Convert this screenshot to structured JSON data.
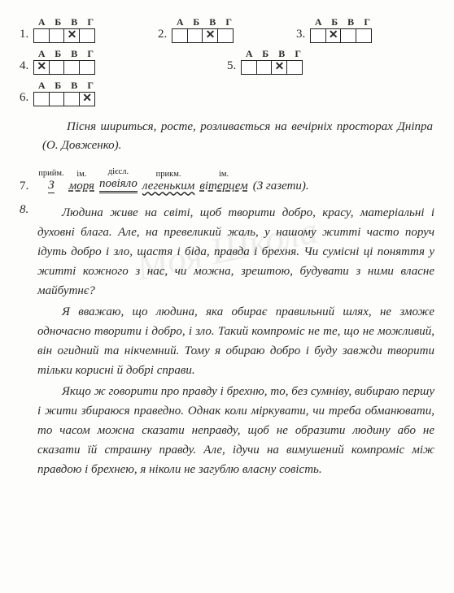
{
  "watermark": "Моя Школа",
  "options": [
    "А",
    "Б",
    "В",
    "Г"
  ],
  "questions": [
    {
      "num": "1.",
      "marked": 2
    },
    {
      "num": "2.",
      "marked": 2
    },
    {
      "num": "3.",
      "marked": 1
    },
    {
      "num": "4.",
      "marked": 0
    },
    {
      "num": "5.",
      "marked": 2
    },
    {
      "num": "6.",
      "marked": 3
    }
  ],
  "sentence": "Пісня шириться, росте, розливається на вечірніх просторах Дніпра (О. Довженко).",
  "q7": {
    "num": "7.",
    "tokens": [
      {
        "pos": "прийм.",
        "text": "З",
        "cls": "prep"
      },
      {
        "pos": "ім.",
        "text": "моря",
        "cls": "subj"
      },
      {
        "pos": "дієсл.",
        "text": "повіяло",
        "cls": "verb"
      },
      {
        "pos": "прикм.",
        "text": "легеньким",
        "cls": "adj"
      },
      {
        "pos": "ім.",
        "text": "вітерцем",
        "cls": "noun2"
      }
    ],
    "source": "(З газети)."
  },
  "q8": {
    "num": "8.",
    "paras": [
      "Людина живе на світі, щоб творити добро, красу, матеріальні і духовні блага. Але, на превеликий жаль, у нашому житті часто поруч ідуть добро і зло, щастя і біда, правда і брехня. Чи сумісні ці поняття у житті кожного з нас, чи можна, зрештою, будувати з ними власне майбутнє?",
      "Я вважаю, що людина, яка обирає правильний шлях, не зможе одночасно творити і добро, і зло. Такий компроміс не те, що не можливий, він огидний та нікчемний. Тому я обираю добро і буду завжди творити тільки корисні й добрі справи.",
      "Якщо ж говорити про правду і брехню, то, без сумніву, вибираю першу і жити збираюся праведно. Однак коли міркувати, чи треба обманювати, то часом можна сказати неправду, щоб не образити людину або не сказати їй страшну правду. Але, ідучи на вимушений компроміс між правдою і брехнею, я ніколи не загублю власну совість."
    ]
  }
}
